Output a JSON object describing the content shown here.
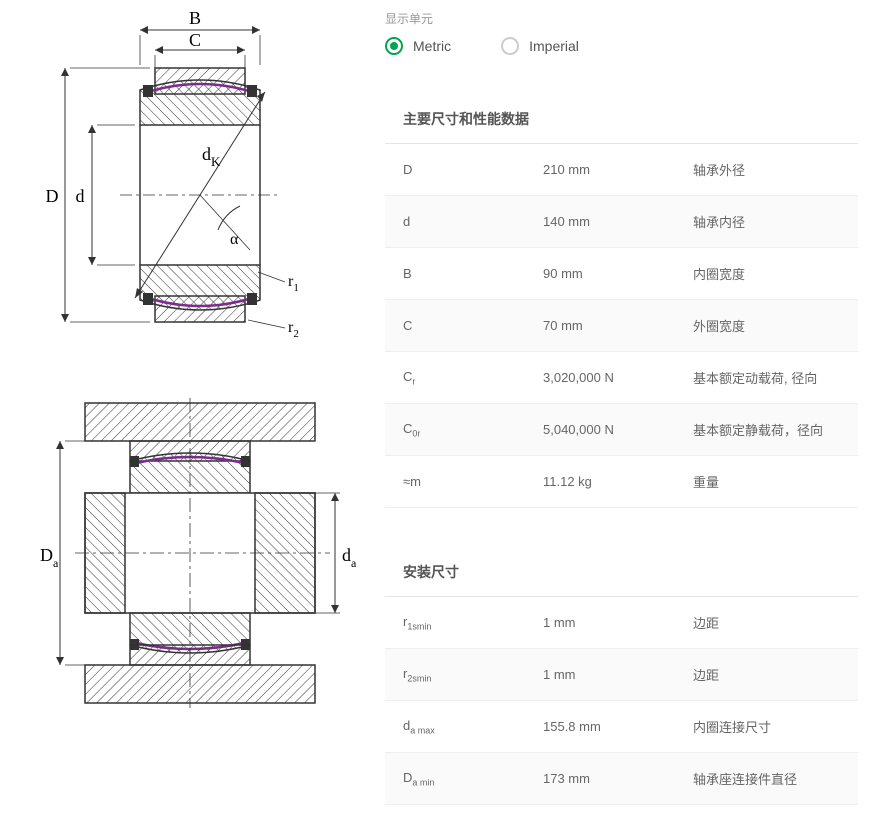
{
  "unit_selector": {
    "label": "显示单元",
    "options": {
      "metric": "Metric",
      "imperial": "Imperial"
    },
    "selected": "metric"
  },
  "sections": {
    "main": {
      "title": "主要尺寸和性能数据"
    },
    "mounting": {
      "title": "安装尺寸"
    }
  },
  "main_rows": [
    {
      "symbol_html": "D",
      "value": "210 mm",
      "desc": "轴承外径"
    },
    {
      "symbol_html": "d",
      "value": "140 mm",
      "desc": "轴承内径"
    },
    {
      "symbol_html": "B",
      "value": "90 mm",
      "desc": "内圈宽度"
    },
    {
      "symbol_html": "C",
      "value": "70 mm",
      "desc": "外圈宽度"
    },
    {
      "symbol_html": "C<span class=\"sub\">r</span>",
      "value": "3,020,000 N",
      "desc": "基本额定动载荷, 径向"
    },
    {
      "symbol_html": "C<span class=\"sub\">0r</span>",
      "value": "5,040,000 N",
      "desc": "基本额定静载荷，径向"
    },
    {
      "symbol_html": "≈m",
      "value": "11.12 kg",
      "desc": "重量"
    }
  ],
  "mounting_rows": [
    {
      "symbol_html": "r<span class=\"sub\">1smin</span>",
      "value": "1 mm",
      "desc": "边距"
    },
    {
      "symbol_html": "r<span class=\"sub\">2smin</span>",
      "value": "1 mm",
      "desc": "边距"
    },
    {
      "symbol_html": "d<span class=\"sub\">a max</span>",
      "value": "155.8 mm",
      "desc": "内圈连接尺寸"
    },
    {
      "symbol_html": "D<span class=\"sub\">a min</span>",
      "value": "173 mm",
      "desc": "轴承座连接件直径"
    }
  ],
  "diagram": {
    "labels": {
      "B": "B",
      "C": "C",
      "D": "D",
      "d": "d",
      "dK": "d",
      "dK_sub": "K",
      "alpha": "α",
      "r1": "r",
      "r1_sub": "1",
      "r2": "r",
      "r2_sub": "2",
      "Da": "D",
      "Da_sub": "a",
      "da": "d",
      "da_sub": "a"
    },
    "colors": {
      "line": "#333333",
      "hatch": "#333333",
      "seal": "#7b2d8e",
      "centerline": "#333333",
      "background": "#ffffff"
    },
    "line_width": 1.2
  }
}
